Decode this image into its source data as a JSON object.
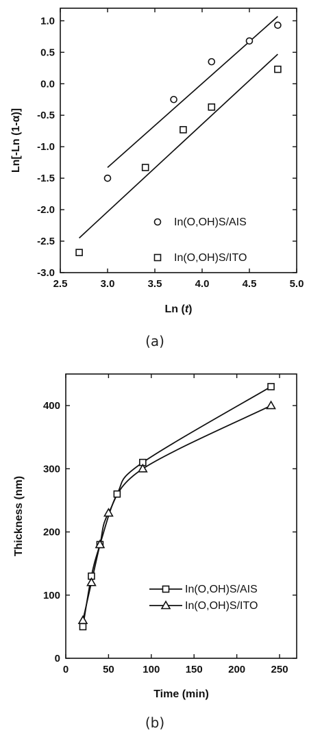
{
  "chart_data": [
    {
      "type": "scatter",
      "caption": "(a)",
      "xlabel_prefix": "Ln (",
      "xlabel_var": "t",
      "xlabel_suffix": ")",
      "ylabel": "Ln[-Ln (1-α)]",
      "xlim": [
        2.5,
        5.0
      ],
      "ylim": [
        -3.0,
        1.2
      ],
      "xticks": [
        2.5,
        3.0,
        3.5,
        4.0,
        4.5,
        5.0
      ],
      "yticks": [
        -3.0,
        -2.5,
        -2.0,
        -1.5,
        -1.0,
        -0.5,
        0.0,
        0.5,
        1.0
      ],
      "tick_decimals": 1,
      "legend_position": "bottom-right",
      "series": [
        {
          "name": "In(O,OH)S/AIS",
          "marker": "circle",
          "x": [
            3.0,
            3.7,
            4.1,
            4.5,
            4.8
          ],
          "y": [
            -1.5,
            -0.25,
            0.35,
            0.68,
            0.93
          ],
          "fit": {
            "x": [
              3.0,
              4.8
            ],
            "y": [
              -1.33,
              1.07
            ]
          }
        },
        {
          "name": "In(O,OH)S/ITO",
          "marker": "square",
          "x": [
            2.7,
            3.4,
            3.8,
            4.1,
            4.8
          ],
          "y": [
            -2.68,
            -1.33,
            -0.73,
            -0.37,
            0.23
          ],
          "fit": {
            "x": [
              2.7,
              4.8
            ],
            "y": [
              -2.45,
              0.47
            ]
          }
        }
      ]
    },
    {
      "type": "line",
      "caption": "(b)",
      "xlabel": "Time (min)",
      "ylabel": "Thickness (nm)",
      "xlim": [
        0,
        270
      ],
      "ylim": [
        0,
        450
      ],
      "xticks": [
        0,
        50,
        100,
        150,
        200,
        250
      ],
      "yticks": [
        0,
        100,
        200,
        300,
        400
      ],
      "tick_decimals": 0,
      "legend_position": "bottom-right",
      "series": [
        {
          "name": "In(O,OH)S/AIS",
          "marker": "square",
          "x": [
            20,
            30,
            40,
            60,
            90,
            240
          ],
          "y": [
            50,
            130,
            180,
            260,
            310,
            430
          ]
        },
        {
          "name": "In(O,OH)S/ITO",
          "marker": "triangle",
          "x": [
            20,
            30,
            40,
            50,
            90,
            240
          ],
          "y": [
            60,
            120,
            180,
            230,
            300,
            400
          ]
        }
      ]
    }
  ]
}
